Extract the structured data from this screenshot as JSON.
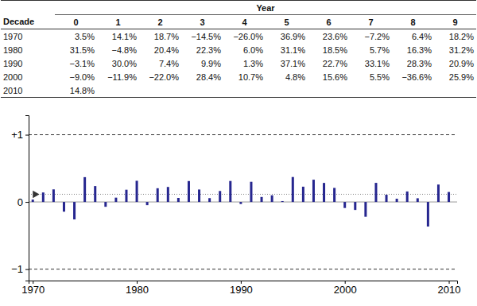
{
  "table": {
    "header_group": "Year",
    "columns": [
      "Decade",
      "0",
      "1",
      "2",
      "3",
      "4",
      "5",
      "6",
      "7",
      "8",
      "9"
    ],
    "rows": [
      [
        "1970",
        "3.5%",
        "14.1%",
        "18.7%",
        "−14.5%",
        "−26.0%",
        "36.9%",
        "23.6%",
        "−7.2%",
        "6.4%",
        "18.2%"
      ],
      [
        "1980",
        "31.5%",
        "−4.8%",
        "20.4%",
        "22.3%",
        "6.0%",
        "31.1%",
        "18.5%",
        "5.7%",
        "16.3%",
        "31.2%"
      ],
      [
        "1990",
        "−3.1%",
        "30.0%",
        "7.4%",
        "9.9%",
        "1.3%",
        "37.1%",
        "22.7%",
        "33.1%",
        "28.3%",
        "20.9%"
      ],
      [
        "2000",
        "−9.0%",
        "−11.9%",
        "−22.0%",
        "28.4%",
        "10.7%",
        "4.8%",
        "15.6%",
        "5.5%",
        "−36.6%",
        "25.9%"
      ],
      [
        "2010",
        "14.8%"
      ]
    ]
  },
  "chart_data": {
    "type": "bar",
    "x": [
      1970,
      1971,
      1972,
      1973,
      1974,
      1975,
      1976,
      1977,
      1978,
      1979,
      1980,
      1981,
      1982,
      1983,
      1984,
      1985,
      1986,
      1987,
      1988,
      1989,
      1990,
      1991,
      1992,
      1993,
      1994,
      1995,
      1996,
      1997,
      1998,
      1999,
      2000,
      2001,
      2002,
      2003,
      2004,
      2005,
      2006,
      2007,
      2008,
      2009,
      2010
    ],
    "values": [
      0.035,
      0.141,
      0.187,
      -0.145,
      -0.26,
      0.369,
      0.236,
      -0.072,
      0.064,
      0.182,
      0.315,
      -0.048,
      0.204,
      0.223,
      0.06,
      0.311,
      0.185,
      0.057,
      0.163,
      0.312,
      -0.031,
      0.3,
      0.074,
      0.099,
      0.013,
      0.371,
      0.227,
      0.331,
      0.283,
      0.209,
      -0.09,
      -0.119,
      -0.22,
      0.284,
      0.107,
      0.048,
      0.156,
      0.055,
      -0.366,
      0.259,
      0.148
    ],
    "color": "#26268f",
    "xlim": [
      1969.6,
      2010.8
    ],
    "xticks": [
      1970,
      1980,
      1990,
      2000,
      2010
    ],
    "ylim": [
      -1.17,
      1.29
    ],
    "yticks": [
      {
        "value": -1,
        "label": "−1"
      },
      0,
      {
        "value": 1,
        "label": "+1"
      }
    ],
    "grid": true,
    "mean": 0.114
  }
}
